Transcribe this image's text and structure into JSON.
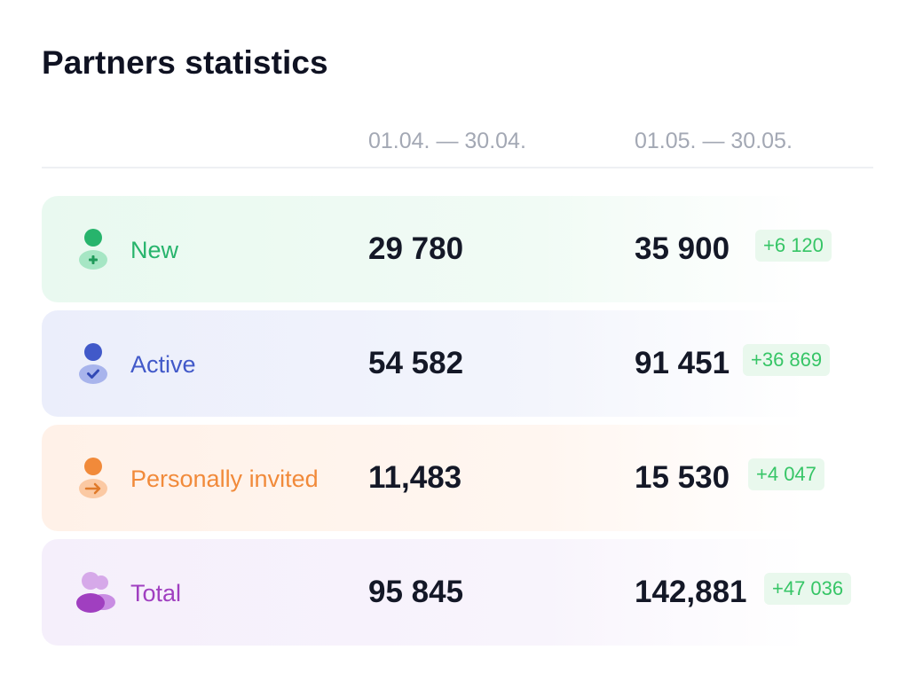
{
  "header": {
    "title": "Partners statistics",
    "period_1": "01.04. — 30.04.",
    "period_2": "01.05. — 30.05."
  },
  "rows": [
    {
      "label": "New",
      "value_1": "29 780",
      "value_2": "35 900",
      "delta": "+6 120",
      "color": "#27b46c",
      "icon": "user-add-icon"
    },
    {
      "label": "Active",
      "value_1": "54 582",
      "value_2": "91 451",
      "delta": "+36 869",
      "color": "#4159c9",
      "icon": "user-check-icon"
    },
    {
      "label": "Personally invited",
      "value_1": "11,483",
      "value_2": "15 530",
      "delta": "+4 047",
      "color": "#f18a3a",
      "icon": "user-arrow-icon"
    },
    {
      "label": "Total",
      "value_1": "95 845",
      "value_2": "142,881",
      "delta": "+47 036",
      "color": "#a03fc0",
      "icon": "users-group-icon"
    }
  ],
  "colors": {
    "title": "#0f1222",
    "muted": "#a3a8b4",
    "delta_text": "#36c566",
    "delta_bg": "#e9f8ed"
  }
}
